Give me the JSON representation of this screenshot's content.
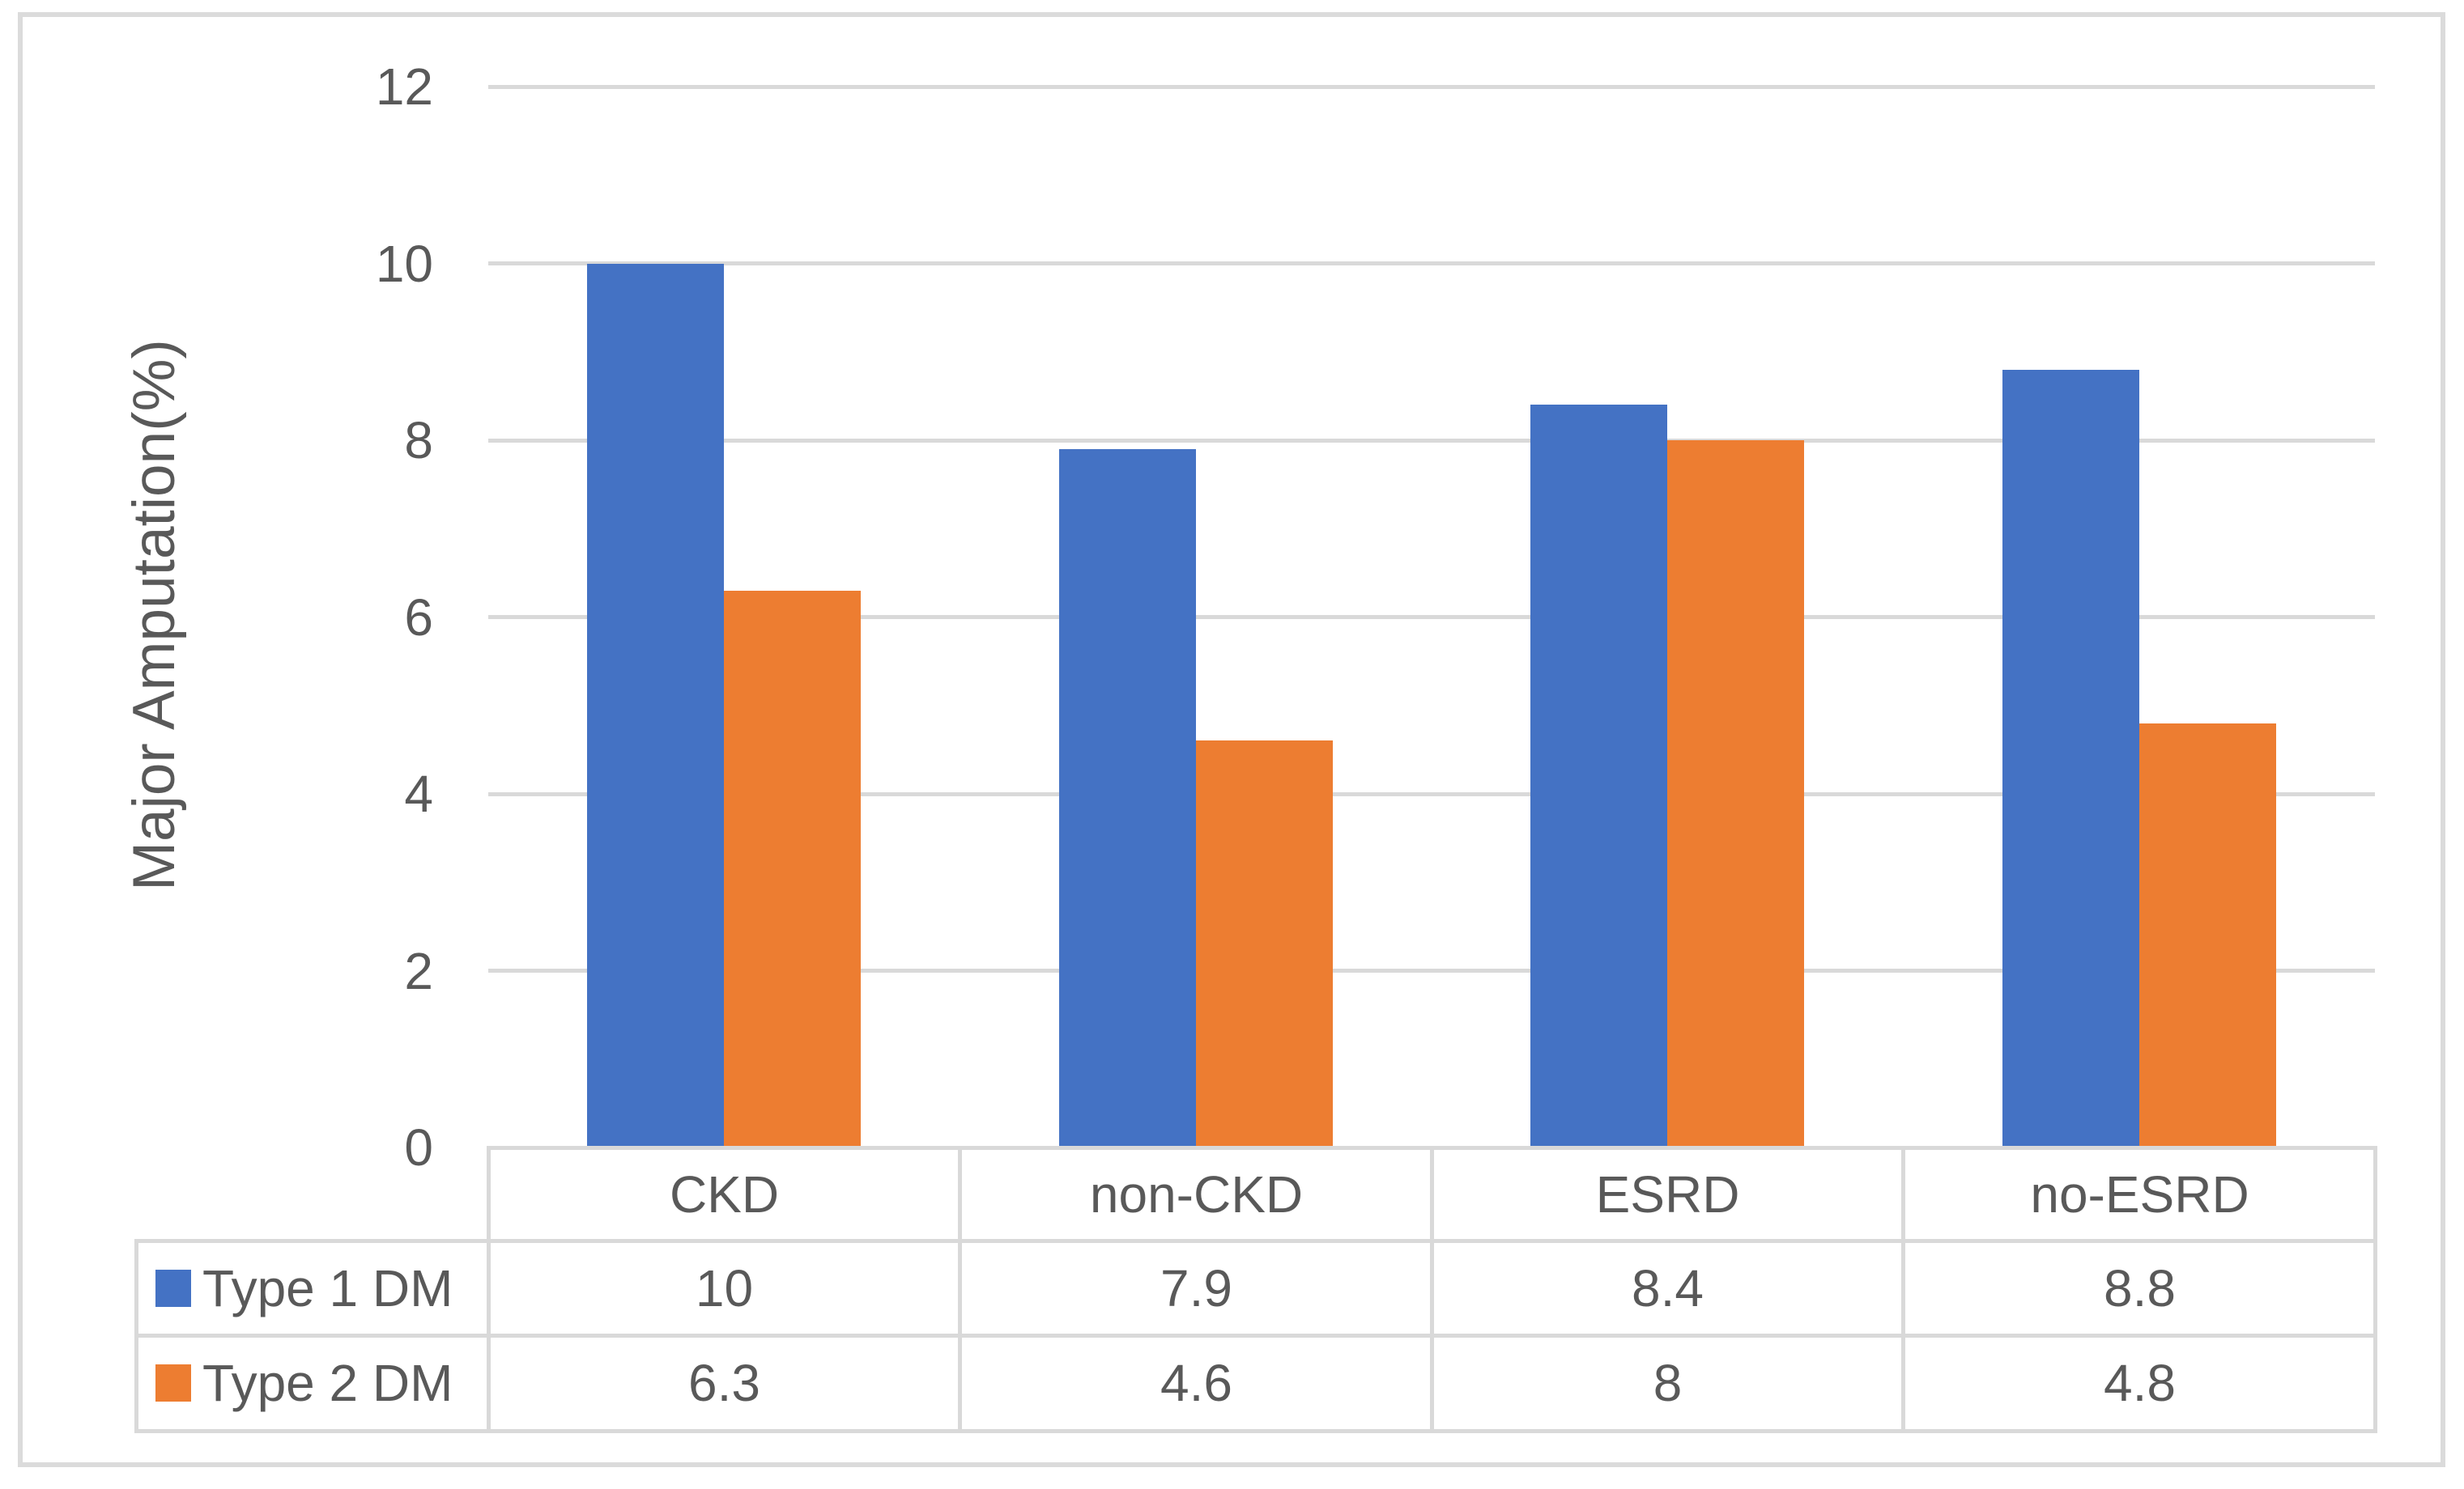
{
  "figure": {
    "background_color": "#FFFFFF",
    "border_color": "#DBDBDB"
  },
  "chart_data": {
    "type": "bar",
    "title": "",
    "xlabel": "",
    "ylabel": "Major Amputation(%)",
    "categories": [
      "CKD",
      "non-CKD",
      "ESRD",
      "no-ESRD"
    ],
    "series": [
      {
        "name": "Type 1 DM",
        "color": "#4472C4",
        "values": [
          10,
          7.9,
          8.4,
          8.8
        ]
      },
      {
        "name": "Type 2 DM",
        "color": "#ED7D31",
        "values": [
          6.3,
          4.6,
          8,
          4.8
        ]
      }
    ],
    "ylim": [
      0,
      12
    ],
    "yticks": [
      0,
      2,
      4,
      6,
      8,
      10,
      12
    ],
    "grid": true,
    "gridline_color": "#D9D9D9",
    "text_color": "#595959",
    "legend_position": "data-table-left",
    "data_table": {
      "columns": [
        "CKD",
        "non-CKD",
        "ESRD",
        "no-ESRD"
      ],
      "rows": [
        {
          "label": "Type 1 DM",
          "swatch_color": "#4472C4",
          "cells": [
            "10",
            "7.9",
            "8.4",
            "8.8"
          ]
        },
        {
          "label": "Type 2 DM",
          "swatch_color": "#ED7D31",
          "cells": [
            "6.3",
            "4.6",
            "8",
            "4.8"
          ]
        }
      ]
    }
  }
}
